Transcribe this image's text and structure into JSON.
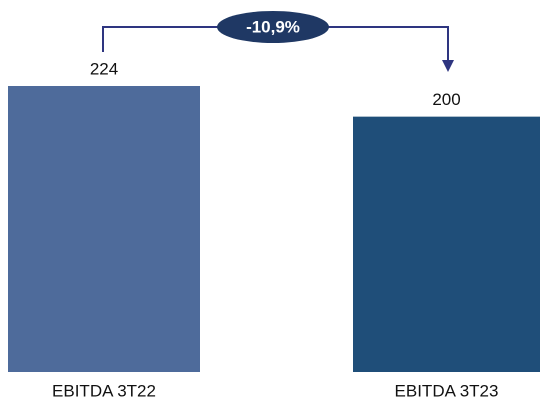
{
  "chart_data": {
    "type": "bar",
    "categories": [
      "EBITDA 3T22",
      "EBITDA 3T23"
    ],
    "values": [
      224,
      200
    ],
    "colors": [
      "#4e6b9b",
      "#1f4e79"
    ],
    "annotation": "-10,9%",
    "annotation_color": "#1f3864"
  }
}
